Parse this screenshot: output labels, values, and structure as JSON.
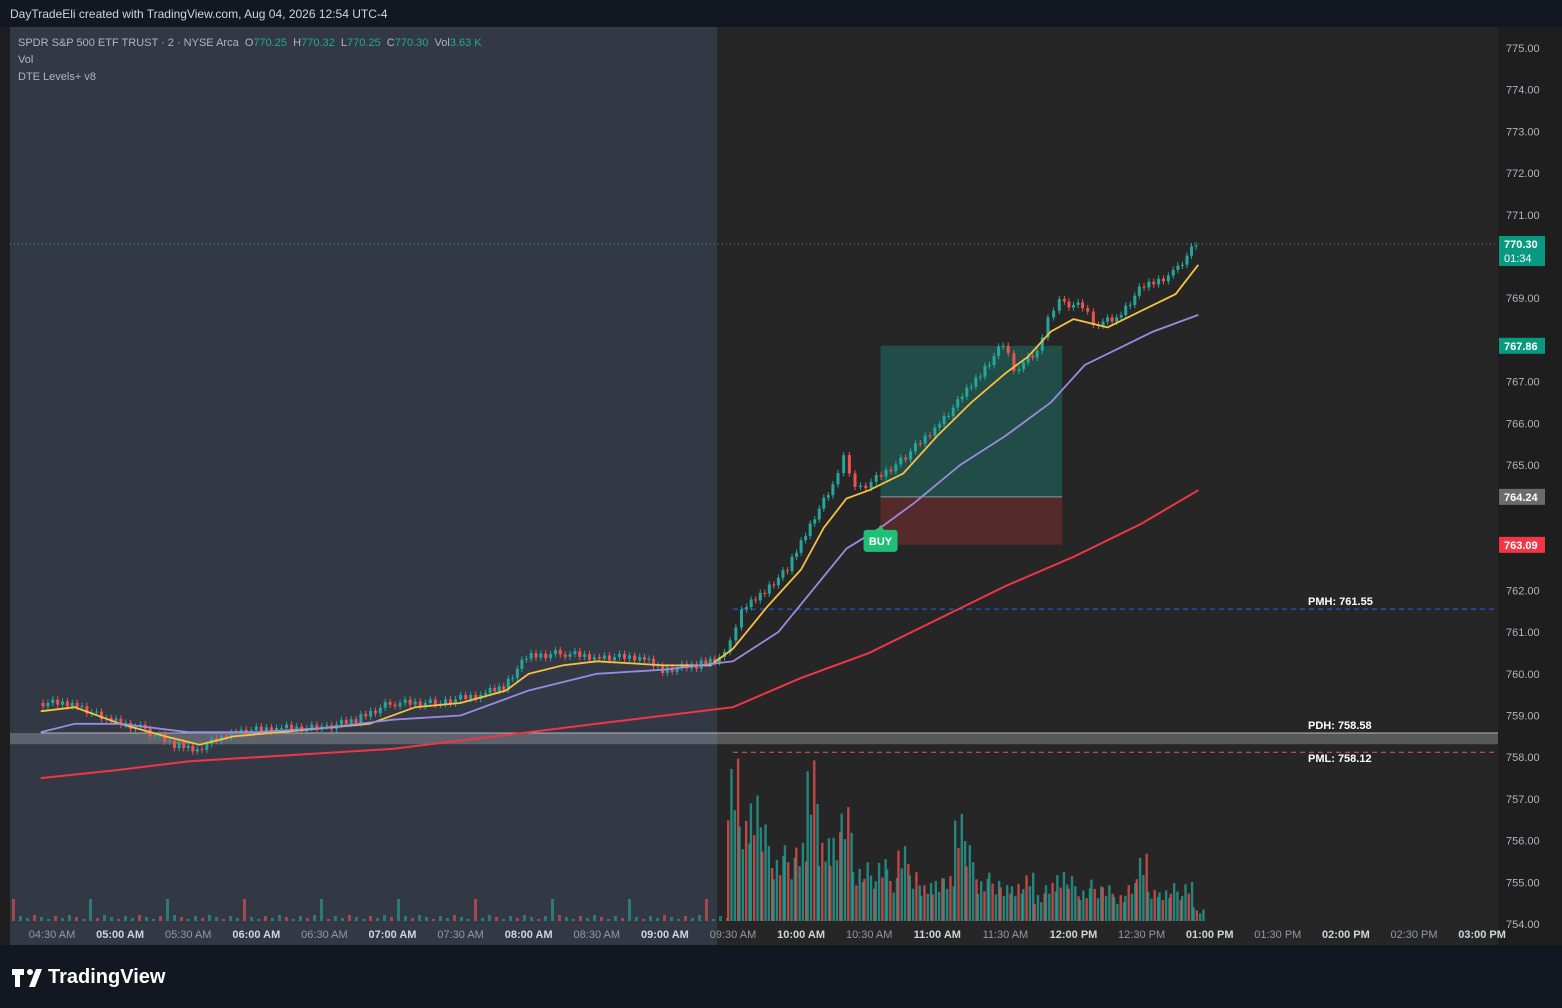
{
  "header": {
    "title": "DayTradeEli created with TradingView.com, Aug 04, 2026 12:54 UTC-4"
  },
  "legend": {
    "symbol": "SPDR S&P 500 ETF TRUST · 2 · NYSE Arca",
    "o_label": "O",
    "o": "770.25",
    "h_label": "H",
    "h": "770.32",
    "l_label": "L",
    "l": "770.25",
    "c_label": "C",
    "c": "770.30",
    "vol_label": "Vol",
    "vol": "3.63 K",
    "line2": "Vol",
    "line3": "DTE Levels+ v8"
  },
  "branding": {
    "logo_text": "TradingView"
  },
  "colors": {
    "up": "#26a69a",
    "down": "#ef5350",
    "ema_fast": "#f5c242",
    "ema_mid": "#9b8be0",
    "ema_slow": "#f23645",
    "pmh": "#2962ff",
    "pml": "#ef5350"
  },
  "chart_data": {
    "type": "candlestick",
    "title": "",
    "ylim": [
      753.5,
      775.5
    ],
    "y_ticks": [
      "775.00",
      "774.00",
      "773.00",
      "772.00",
      "771.00",
      "769.00",
      "767.00",
      "766.00",
      "765.00",
      "762.00",
      "761.00",
      "760.00",
      "759.00",
      "758.00",
      "757.00",
      "756.00",
      "755.00",
      "754.00"
    ],
    "x_ticks": [
      "04:30 AM",
      "05:00 AM",
      "05:30 AM",
      "06:00 AM",
      "06:30 AM",
      "07:00 AM",
      "07:30 AM",
      "08:00 AM",
      "08:30 AM",
      "09:00 AM",
      "09:30 AM",
      "10:00 AM",
      "10:30 AM",
      "11:00 AM",
      "11:30 AM",
      "12:00 PM",
      "12:30 PM",
      "01:00 PM",
      "01:30 PM",
      "02:00 PM",
      "02:30 PM",
      "03:00 PM"
    ],
    "bold_x_ticks": [
      "05:00 AM",
      "06:00 AM",
      "07:00 AM",
      "08:00 AM",
      "09:00 AM",
      "10:00 AM",
      "11:00 AM",
      "12:00 PM",
      "01:00 PM",
      "02:00 PM",
      "03:00 PM"
    ],
    "session_open": "09:30 AM",
    "close_series": [
      [
        "04:25 AM",
        759.3
      ],
      [
        "04:40 AM",
        759.3
      ],
      [
        "04:55 AM",
        758.9
      ],
      [
        "05:10 AM",
        758.7
      ],
      [
        "05:25 AM",
        758.3
      ],
      [
        "05:35 AM",
        758.2
      ],
      [
        "05:50 AM",
        758.6
      ],
      [
        "06:10 AM",
        758.7
      ],
      [
        "06:30 AM",
        758.7
      ],
      [
        "06:45 AM",
        758.9
      ],
      [
        "07:00 AM",
        759.3
      ],
      [
        "07:20 AM",
        759.3
      ],
      [
        "07:40 AM",
        759.5
      ],
      [
        "07:50 AM",
        759.7
      ],
      [
        "08:00 AM",
        760.4
      ],
      [
        "08:15 AM",
        760.5
      ],
      [
        "08:30 AM",
        760.4
      ],
      [
        "08:50 AM",
        760.4
      ],
      [
        "09:00 AM",
        760.1
      ],
      [
        "09:15 AM",
        760.2
      ],
      [
        "09:25 AM",
        760.4
      ],
      [
        "09:30 AM",
        760.8
      ],
      [
        "09:35 AM",
        761.5
      ],
      [
        "09:45 AM",
        762.0
      ],
      [
        "09:55 AM",
        762.5
      ],
      [
        "10:05 AM",
        763.6
      ],
      [
        "10:15 AM",
        764.5
      ],
      [
        "10:20 AM",
        765.2
      ],
      [
        "10:25 AM",
        764.4
      ],
      [
        "10:32 AM",
        764.6
      ],
      [
        "10:45 AM",
        765.1
      ],
      [
        "11:00 AM",
        765.9
      ],
      [
        "11:10 AM",
        766.5
      ],
      [
        "11:20 AM",
        767.2
      ],
      [
        "11:30 AM",
        767.9
      ],
      [
        "11:35 AM",
        767.3
      ],
      [
        "11:45 AM",
        767.7
      ],
      [
        "11:50 AM",
        768.5
      ],
      [
        "11:55 AM",
        768.9
      ],
      [
        "12:05 PM",
        768.8
      ],
      [
        "12:10 PM",
        768.4
      ],
      [
        "12:20 PM",
        768.5
      ],
      [
        "12:30 PM",
        769.2
      ],
      [
        "12:45 PM",
        769.6
      ],
      [
        "12:55 PM",
        770.3
      ]
    ],
    "series": [
      {
        "name": "",
        "color": "#f5c242",
        "values": [
          [
            "04:25 AM",
            759.1
          ],
          [
            "04:40 AM",
            759.2
          ],
          [
            "05:00 AM",
            758.8
          ],
          [
            "05:20 AM",
            758.5
          ],
          [
            "05:35 AM",
            758.3
          ],
          [
            "05:50 AM",
            758.5
          ],
          [
            "06:10 AM",
            758.6
          ],
          [
            "06:30 AM",
            758.7
          ],
          [
            "06:50 AM",
            758.8
          ],
          [
            "07:10 AM",
            759.2
          ],
          [
            "07:30 AM",
            759.3
          ],
          [
            "07:50 AM",
            759.6
          ],
          [
            "08:00 AM",
            760.0
          ],
          [
            "08:15 AM",
            760.2
          ],
          [
            "08:30 AM",
            760.3
          ],
          [
            "09:00 AM",
            760.2
          ],
          [
            "09:20 AM",
            760.2
          ],
          [
            "09:30 AM",
            760.6
          ],
          [
            "09:45 AM",
            761.6
          ],
          [
            "10:00 AM",
            762.5
          ],
          [
            "10:10 AM",
            763.5
          ],
          [
            "10:20 AM",
            764.2
          ],
          [
            "10:30 AM",
            764.4
          ],
          [
            "10:45 AM",
            764.8
          ],
          [
            "11:00 AM",
            765.7
          ],
          [
            "11:15 AM",
            766.5
          ],
          [
            "11:30 AM",
            767.2
          ],
          [
            "11:40 AM",
            767.6
          ],
          [
            "11:50 AM",
            768.2
          ],
          [
            "12:00 PM",
            768.5
          ],
          [
            "12:15 PM",
            768.3
          ],
          [
            "12:30 PM",
            768.7
          ],
          [
            "12:45 PM",
            769.1
          ],
          [
            "12:55 PM",
            769.8
          ]
        ]
      },
      {
        "name": "",
        "color": "#9b8be0",
        "values": [
          [
            "04:25 AM",
            758.6
          ],
          [
            "04:40 AM",
            758.8
          ],
          [
            "05:00 AM",
            758.8
          ],
          [
            "05:30 AM",
            758.6
          ],
          [
            "06:00 AM",
            758.6
          ],
          [
            "06:30 AM",
            758.7
          ],
          [
            "07:00 AM",
            758.9
          ],
          [
            "07:30 AM",
            759.0
          ],
          [
            "08:00 AM",
            759.6
          ],
          [
            "08:30 AM",
            760.0
          ],
          [
            "09:00 AM",
            760.1
          ],
          [
            "09:30 AM",
            760.3
          ],
          [
            "09:50 AM",
            761.0
          ],
          [
            "10:05 AM",
            762.0
          ],
          [
            "10:20 AM",
            763.0
          ],
          [
            "10:35 AM",
            763.5
          ],
          [
            "10:50 AM",
            764.1
          ],
          [
            "11:10 AM",
            765.0
          ],
          [
            "11:30 AM",
            765.7
          ],
          [
            "11:50 AM",
            766.5
          ],
          [
            "12:05 PM",
            767.4
          ],
          [
            "12:20 PM",
            767.8
          ],
          [
            "12:35 PM",
            768.2
          ],
          [
            "12:55 PM",
            768.6
          ]
        ]
      },
      {
        "name": "",
        "color": "#f23645",
        "values": [
          [
            "04:25 AM",
            757.5
          ],
          [
            "05:00 AM",
            757.7
          ],
          [
            "05:30 AM",
            757.9
          ],
          [
            "06:00 AM",
            758.0
          ],
          [
            "07:00 AM",
            758.2
          ],
          [
            "07:30 AM",
            758.4
          ],
          [
            "08:00 AM",
            758.6
          ],
          [
            "08:30 AM",
            758.8
          ],
          [
            "09:00 AM",
            759.0
          ],
          [
            "09:30 AM",
            759.2
          ],
          [
            "10:00 AM",
            759.9
          ],
          [
            "10:30 AM",
            760.5
          ],
          [
            "11:00 AM",
            761.3
          ],
          [
            "11:30 AM",
            762.1
          ],
          [
            "12:00 PM",
            762.8
          ],
          [
            "12:30 PM",
            763.6
          ],
          [
            "12:55 PM",
            764.4
          ]
        ]
      }
    ],
    "levels": [
      {
        "label": "PMH: 761.55",
        "value": 761.55,
        "color": "#2962ff",
        "start": "09:30 AM"
      },
      {
        "label": "PDH: 758.58",
        "value": 758.58,
        "color": "#b2b5be",
        "start": "04:25 AM"
      },
      {
        "label": "PML: 758.12",
        "value": 758.12,
        "color": "#ef5350",
        "start": "09:30 AM"
      }
    ],
    "position": {
      "label": "BUY",
      "start": "10:35 AM",
      "end": "11:55 AM",
      "entry": 764.24,
      "target": 767.86,
      "stop": 763.09
    },
    "price_tags": [
      {
        "value": 770.3,
        "text": "770.30",
        "sub": "01:34",
        "color": "#089981"
      },
      {
        "value": 767.86,
        "text": "767.86",
        "color": "#089981"
      },
      {
        "value": 764.24,
        "text": "764.24",
        "color": "#6b6b6b"
      },
      {
        "value": 763.09,
        "text": "763.09",
        "color": "#f23645"
      }
    ],
    "volume": [
      [
        "09:30 AM",
        53
      ],
      [
        "09:35 AM",
        29
      ],
      [
        "09:40 AM",
        41
      ],
      [
        "09:45 AM",
        28
      ],
      [
        "09:50 AM",
        20
      ],
      [
        "09:55 AM",
        22
      ],
      [
        "10:00 AM",
        24
      ],
      [
        "10:05 AM",
        56
      ],
      [
        "10:10 AM",
        24
      ],
      [
        "10:15 AM",
        29
      ],
      [
        "10:20 AM",
        33
      ],
      [
        "10:25 AM",
        17
      ],
      [
        "10:30 AM",
        17
      ],
      [
        "10:35 AM",
        19
      ],
      [
        "10:40 AM",
        15
      ],
      [
        "10:45 AM",
        23
      ],
      [
        "10:50 AM",
        17
      ],
      [
        "10:55 AM",
        11
      ],
      [
        "11:00 AM",
        14
      ],
      [
        "11:05 AM",
        13
      ],
      [
        "11:10 AM",
        35
      ],
      [
        "11:15 AM",
        22
      ],
      [
        "11:20 AM",
        13
      ],
      [
        "11:25 AM",
        14
      ],
      [
        "11:30 AM",
        11
      ],
      [
        "11:35 AM",
        13
      ],
      [
        "11:40 AM",
        14
      ],
      [
        "11:45 AM",
        9
      ],
      [
        "11:50 AM",
        11
      ],
      [
        "11:55 AM",
        16
      ],
      [
        "12:00 PM",
        13
      ],
      [
        "12:05 PM",
        10
      ],
      [
        "12:10 PM",
        12
      ],
      [
        "12:15 PM",
        11
      ],
      [
        "12:20 PM",
        9
      ],
      [
        "12:25 PM",
        11
      ],
      [
        "12:30 PM",
        22
      ],
      [
        "12:35 PM",
        9
      ],
      [
        "12:40 PM",
        10
      ],
      [
        "12:45 PM",
        11
      ],
      [
        "12:50 PM",
        12
      ],
      [
        "12:55 PM",
        4
      ]
    ]
  }
}
